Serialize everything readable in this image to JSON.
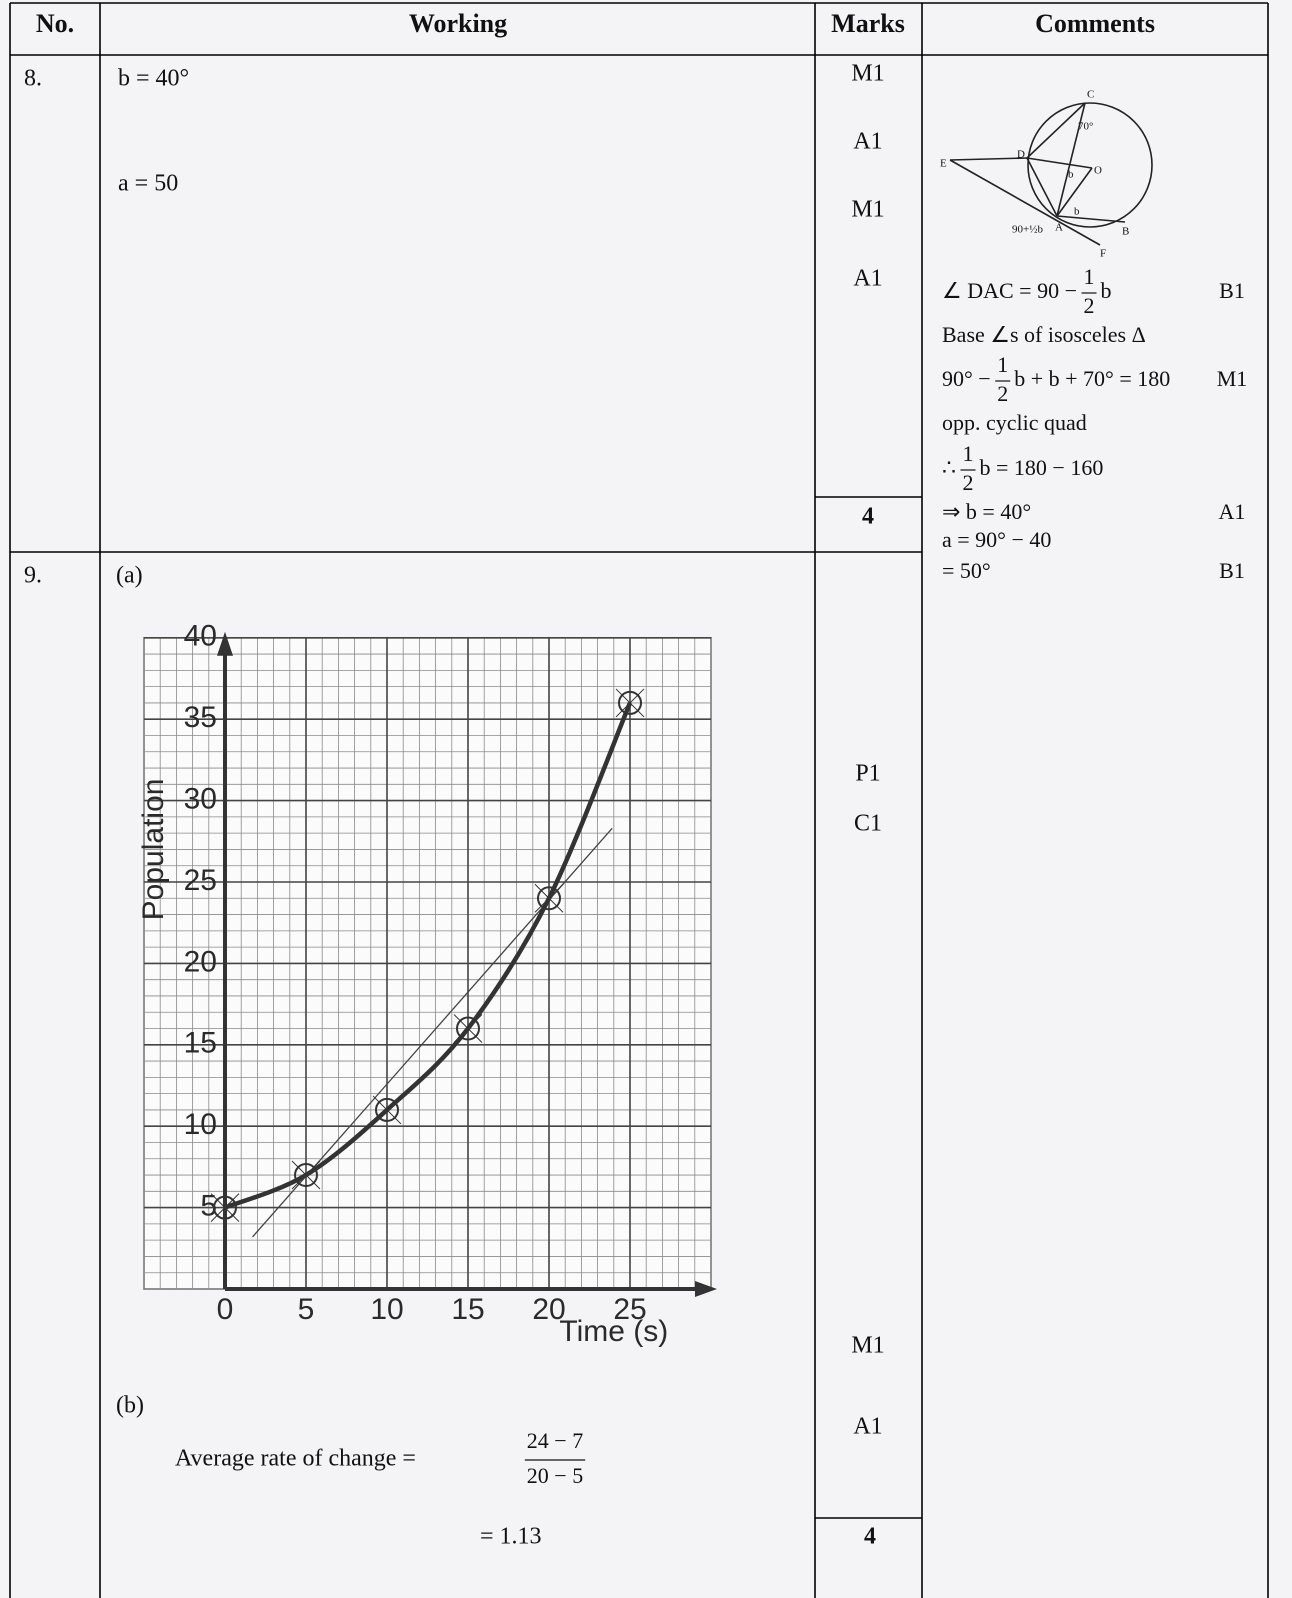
{
  "header": {
    "no": "No.",
    "working": "Working",
    "marks": "Marks",
    "comments": "Comments"
  },
  "rows": [
    {
      "no": "8.",
      "working": [
        "b = 40°",
        "a = 50"
      ],
      "marks": [
        "M1",
        "A1",
        "M1",
        "A1"
      ],
      "total": "4",
      "diagram_labels": [
        "C",
        "70°",
        "D",
        "E",
        "O",
        "b",
        "b",
        "A",
        "B",
        "F",
        "90+½b"
      ],
      "comments": [
        {
          "text": "∠ DAC = 90 −",
          "fraction": [
            "1",
            "2"
          ],
          "after": "b",
          "mark": "B1"
        },
        {
          "text": "Base ∠s of isosceles Δ"
        },
        {
          "text": "90° −",
          "fraction": [
            "1",
            "2"
          ],
          "after": "b + b + 70° = 180",
          "mark": "M1"
        },
        {
          "text": "opp. cyclic quad"
        },
        {
          "text": "∴",
          "fraction": [
            "1",
            "2"
          ],
          "after": "b = 180 − 160"
        },
        {
          "text": "⇒ b = 40°",
          "mark": "A1"
        },
        {
          "text": "a = 90° − 40"
        },
        {
          "text": "= 50°",
          "mark": "B1"
        }
      ]
    },
    {
      "no": "9.",
      "part_a": "(a)",
      "graph": {
        "type": "line",
        "x_label": "Time (s)",
        "y_label": "Population",
        "x": [
          0,
          5,
          10,
          15,
          20,
          25
        ],
        "values": [
          5,
          7,
          11,
          16,
          24,
          36
        ],
        "tangent": {
          "x": [
            1.7,
            23.9
          ],
          "values": [
            3.2,
            28.3
          ]
        },
        "xlim": [
          -5,
          30
        ],
        "ylim": [
          0,
          40
        ],
        "xticks": [
          0,
          5,
          10,
          15,
          20,
          25
        ],
        "yticks": [
          5,
          10,
          15,
          20,
          25,
          30,
          35,
          40
        ],
        "grid": true,
        "color": "#333333"
      },
      "part_b": "(b)",
      "working_b": {
        "text": "Average rate of change =",
        "fraction": [
          "24 − 7",
          "20 − 5"
        ],
        "result": "= 1.13"
      },
      "marks": [
        "P1",
        "C1",
        "M1",
        "A1"
      ],
      "total": "4"
    }
  ]
}
